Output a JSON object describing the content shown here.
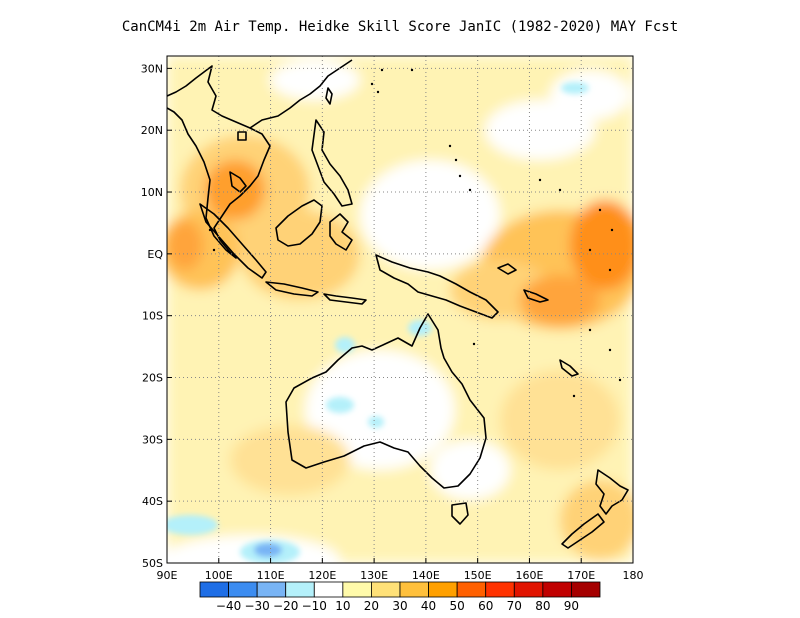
{
  "title": "CanCM4i  2m Air Temp. Heidke Skill Score JanIC (1982-2020) MAY Fcst",
  "map": {
    "lat_labels": [
      "30N",
      "20N",
      "10N",
      "EQ",
      "10S",
      "20S",
      "30S",
      "40S",
      "50S"
    ],
    "lon_labels": [
      "90E",
      "100E",
      "110E",
      "120E",
      "130E",
      "140E",
      "150E",
      "160E",
      "170E",
      "180"
    ],
    "lon_range": [
      90,
      180
    ],
    "lat_range": [
      -50,
      32
    ],
    "grid": true
  },
  "colorbar": {
    "labels": [
      "-40",
      "-30",
      "-20",
      "-10",
      "10",
      "20",
      "30",
      "40",
      "50",
      "60",
      "70",
      "80",
      "90"
    ],
    "colors": [
      "#1e6ee6",
      "#3c8cf0",
      "#78b4f5",
      "#b4f0fa",
      "#ffffff",
      "#fffaaa",
      "#ffe178",
      "#ffc03c",
      "#ffa000",
      "#ff6000",
      "#ff3200",
      "#e11400",
      "#c00000",
      "#a50000"
    ]
  }
}
